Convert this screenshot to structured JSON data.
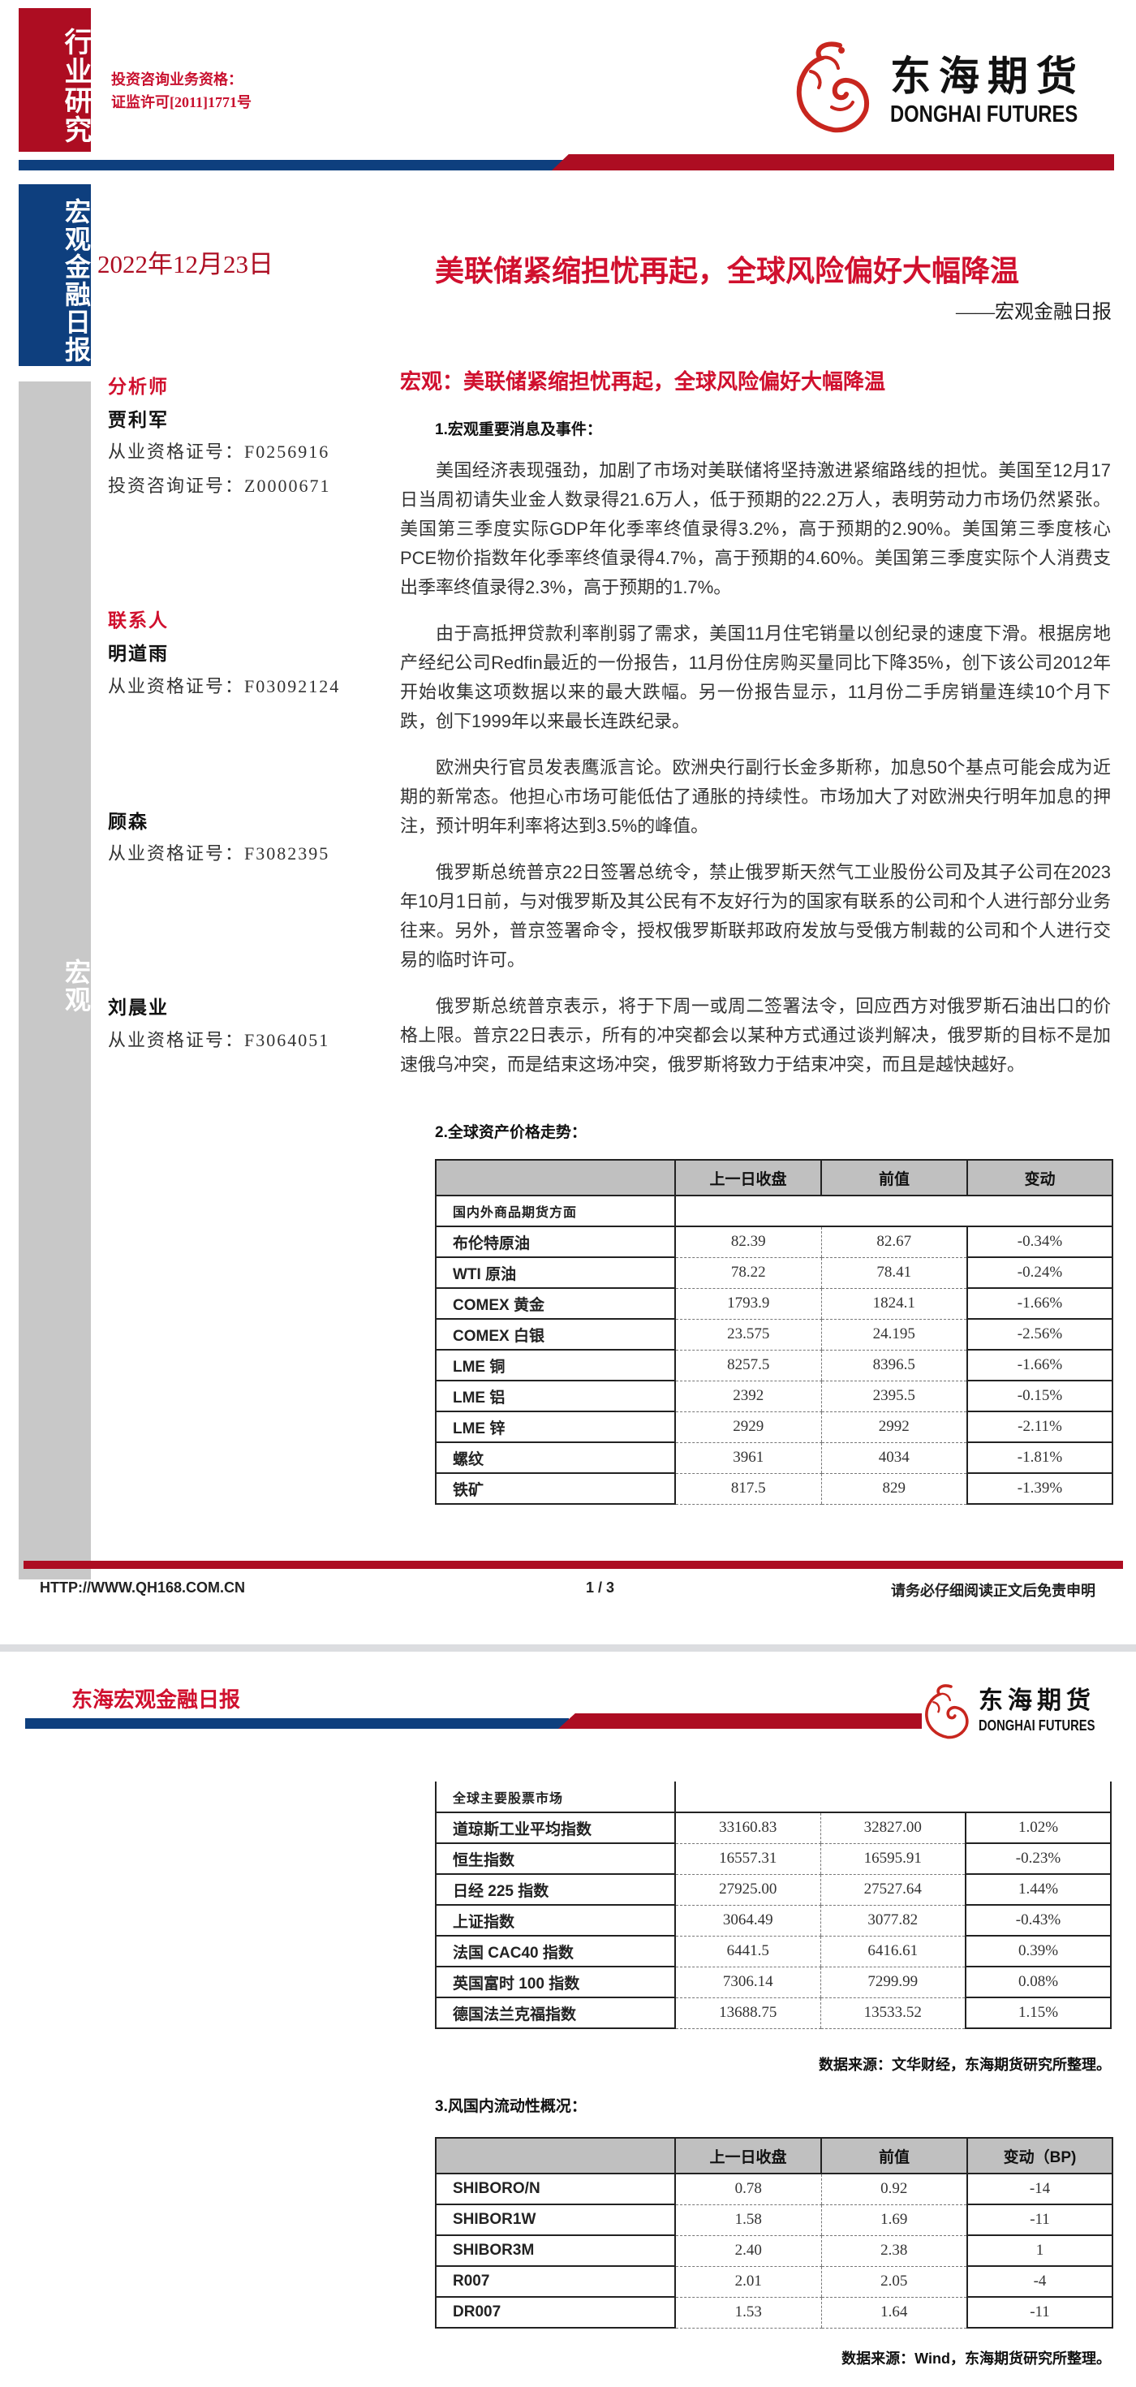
{
  "page1": {
    "side_tag_top": "行业研究",
    "side_tag_mid": "宏观金融日报",
    "side_tag_low": "宏观",
    "qualification": [
      "投资咨询业务资格：",
      "证监许可[2011]1771号"
    ],
    "logo": {
      "cn": "东海期货",
      "en": "DONGHAI FUTURES"
    },
    "date": "2022年12月23日",
    "title": "美联储紧缩担忧再起，全球风险偏好大幅降温",
    "subtitle": "——宏观金融日报",
    "analyst_label": "分析师",
    "analyst": {
      "name": "贾利军",
      "cert1": "从业资格证号：F0256916",
      "cert2": "投资咨询证号：Z0000671"
    },
    "contact_label": "联系人",
    "contacts": [
      {
        "name": "明道雨",
        "cert": "从业资格证号：F03092124"
      },
      {
        "name": "顾森",
        "cert": "从业资格证号：F3082395"
      },
      {
        "name": "刘晨业",
        "cert": "从业资格证号：F3064051"
      }
    ],
    "section_heading": "宏观：美联储紧缩担忧再起，全球风险偏好大幅降温",
    "sub1": "1.宏观重要消息及事件：",
    "paragraphs": [
      "美国经济表现强劲，加剧了市场对美联储将坚持激进紧缩路线的担忧。美国至12月17日当周初请失业金人数录得21.6万人，低于预期的22.2万人，表明劳动力市场仍然紧张。美国第三季度实际GDP年化季率终值录得3.2%，高于预期的2.90%。美国第三季度核心PCE物价指数年化季率终值录得4.7%，高于预期的4.60%。美国第三季度实际个人消费支出季率终值录得2.3%，高于预期的1.7%。",
      "由于高抵押贷款利率削弱了需求，美国11月住宅销量以创纪录的速度下滑。根据房地产经纪公司Redfin最近的一份报告，11月份住房购买量同比下降35%，创下该公司2012年开始收集这项数据以来的最大跌幅。另一份报告显示，11月份二手房销量连续10个月下跌，创下1999年以来最长连跌纪录。",
      "欧洲央行官员发表鹰派言论。欧洲央行副行长金多斯称，加息50个基点可能会成为近期的新常态。他担心市场可能低估了通胀的持续性。市场加大了对欧洲央行明年加息的押注，预计明年利率将达到3.5%的峰值。",
      "俄罗斯总统普京22日签署总统令，禁止俄罗斯天然气工业股份公司及其子公司在2023年10月1日前，与对俄罗斯及其公民有不友好行为的国家有联系的公司和个人进行部分业务往来。另外，普京签署命令，授权俄罗斯联邦政府发放与受俄方制裁的公司和个人进行交易的临时许可。",
      "俄罗斯总统普京表示，将于下周一或周二签署法令，回应西方对俄罗斯石油出口的价格上限。普京22日表示，所有的冲突都会以某种方式通过谈判解决，俄罗斯的目标不是加速俄乌冲突，而是结束这场冲突，俄罗斯将致力于结束冲突，而且是越快越好。"
    ],
    "sub2": "2.全球资产价格走势：",
    "footer": {
      "url": "HTTP://WWW.QH168.COM.CN",
      "page": "1 / 3",
      "disclaimer": "请务必仔细阅读正文后免责申明"
    }
  },
  "asset_table": {
    "headers": [
      "",
      "上一日收盘",
      "前值",
      "变动"
    ],
    "section1": "国内外商品期货方面",
    "commodities": [
      [
        "布伦特原油",
        "82.39",
        "82.67",
        "-0.34%"
      ],
      [
        "WTI 原油",
        "78.22",
        "78.41",
        "-0.24%"
      ],
      [
        "COMEX 黄金",
        "1793.9",
        "1824.1",
        "-1.66%"
      ],
      [
        "COMEX 白银",
        "23.575",
        "24.195",
        "-2.56%"
      ],
      [
        "LME 铜",
        "8257.5",
        "8396.5",
        "-1.66%"
      ],
      [
        "LME 铝",
        "2392",
        "2395.5",
        "-0.15%"
      ],
      [
        "LME 锌",
        "2929",
        "2992",
        "-2.11%"
      ],
      [
        "螺纹",
        "3961",
        "4034",
        "-1.81%"
      ],
      [
        "铁矿",
        "817.5",
        "829",
        "-1.39%"
      ]
    ],
    "section2": "全球主要股票市场",
    "equities": [
      [
        "道琼斯工业平均指数",
        "33160.83",
        "32827.00",
        "1.02%"
      ],
      [
        "恒生指数",
        "16557.31",
        "16595.91",
        "-0.23%"
      ],
      [
        "日经 225 指数",
        "27925.00",
        "27527.64",
        "1.44%"
      ],
      [
        "上证指数",
        "3064.49",
        "3077.82",
        "-0.43%"
      ],
      [
        "法国 CAC40 指数",
        "6441.5",
        "6416.61",
        "0.39%"
      ],
      [
        "英国富时 100 指数",
        "7306.14",
        "7299.99",
        "0.08%"
      ],
      [
        "德国法兰克福指数",
        "13688.75",
        "13533.52",
        "1.15%"
      ]
    ],
    "source": "数据来源：文华财经，东海期货研究所整理。"
  },
  "page2": {
    "header_title": "东海宏观金融日报",
    "logo": {
      "cn": "东海期货",
      "en": "DONGHAI FUTURES"
    },
    "sub3": "3.风国内流动性概况："
  },
  "liquidity_table": {
    "headers": [
      "",
      "上一日收盘",
      "前值",
      "变动（BP)"
    ],
    "rows": [
      [
        "SHIBORO/N",
        "0.78",
        "0.92",
        "-14"
      ],
      [
        "SHIBOR1W",
        "1.58",
        "1.69",
        "-11"
      ],
      [
        "SHIBOR3M",
        "2.40",
        "2.38",
        "1"
      ],
      [
        "R007",
        "2.01",
        "2.05",
        "-4"
      ],
      [
        "DR007",
        "1.53",
        "1.64",
        "-11"
      ]
    ],
    "source": "数据来源：Wind，东海期货研究所整理。"
  },
  "colors": {
    "brand_red": "#ad0d22",
    "brand_blue": "#0e3f7e",
    "side_gray": "#c8c8c8",
    "table_header": "#c0c0c0"
  }
}
